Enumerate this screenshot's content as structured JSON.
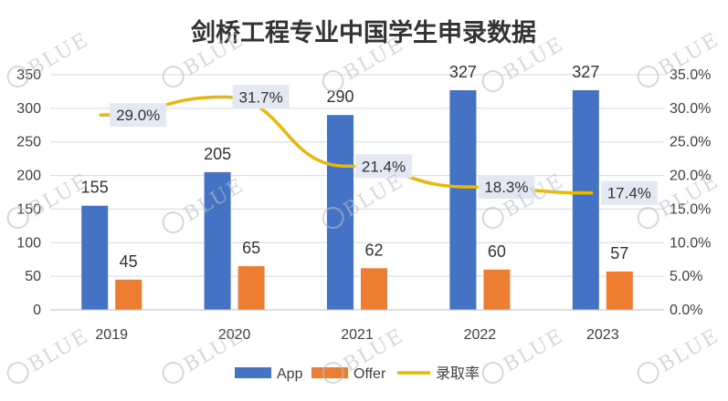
{
  "chart_data": {
    "type": "bar",
    "title": "剑桥工程专业中国学生申录数据",
    "categories": [
      "2019",
      "2020",
      "2021",
      "2022",
      "2023"
    ],
    "series": [
      {
        "name": "App",
        "type": "bar",
        "axis": "left",
        "color": "#4472C4",
        "values": [
          155,
          205,
          290,
          327,
          327
        ]
      },
      {
        "name": "Offer",
        "type": "bar",
        "axis": "left",
        "color": "#ED7D31",
        "values": [
          45,
          65,
          62,
          60,
          57
        ]
      },
      {
        "name": "录取率",
        "type": "line",
        "axis": "right",
        "color": "#E8B70A",
        "values": [
          29.0,
          31.7,
          21.4,
          18.3,
          17.4
        ],
        "labels": [
          "29.0%",
          "31.7%",
          "21.4%",
          "18.3%",
          "17.4%"
        ]
      }
    ],
    "y_left": {
      "min": 0,
      "max": 350,
      "ticks": [
        "0",
        "50",
        "100",
        "150",
        "200",
        "250",
        "300",
        "350"
      ]
    },
    "y_right": {
      "min": 0,
      "max": 35,
      "ticks": [
        "0.0%",
        "5.0%",
        "10.0%",
        "15.0%",
        "20.0%",
        "25.0%",
        "30.0%",
        "35.0%"
      ]
    },
    "grid": true,
    "legend": "bottom",
    "label_box_color": "#E3E8F2"
  },
  "watermark": {
    "text": "BLUE",
    "color": "#b9bec6"
  }
}
